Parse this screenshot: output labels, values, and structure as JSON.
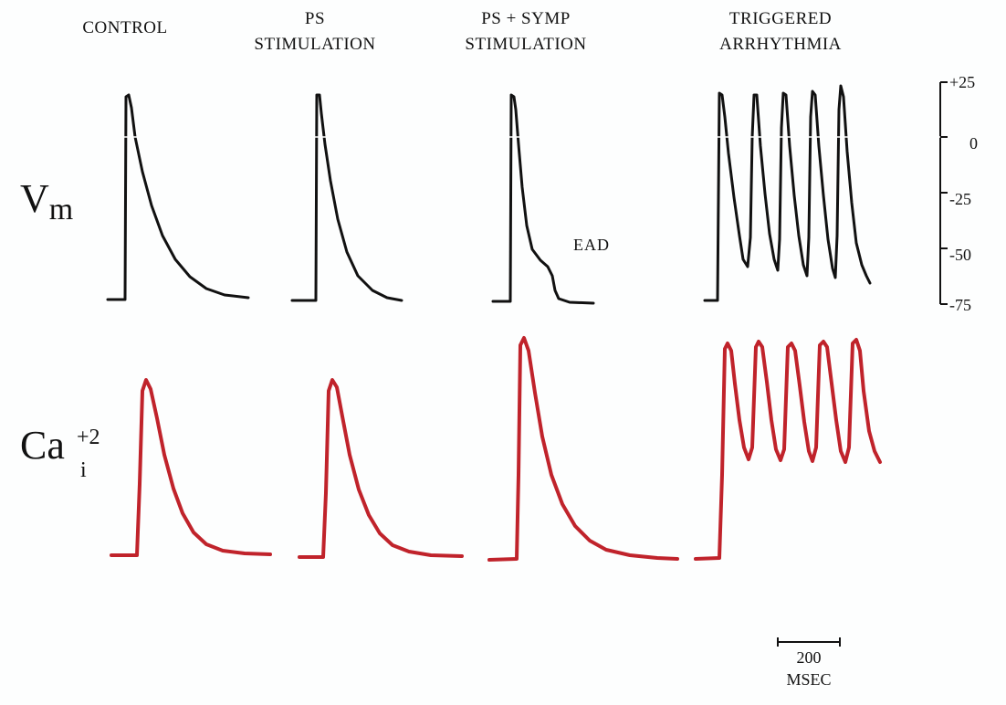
{
  "colors": {
    "vm_trace": "#111111",
    "ca_trace": "#c0232b",
    "background": "#fdfefe"
  },
  "columns": [
    {
      "line1": "CONTROL",
      "line2": ""
    },
    {
      "line1": "PS",
      "line2": "STIMULATION"
    },
    {
      "line1": "PS + SYMP",
      "line2": "STIMULATION"
    },
    {
      "line1": "TRIGGERED",
      "line2": "ARRHYTHMIA"
    }
  ],
  "rows": {
    "vm_label": "V",
    "vm_sub": "m",
    "ca_label": "Ca",
    "ca_sup": "+2",
    "ca_sub": "i"
  },
  "vm_axis": {
    "ticks": [
      "+25",
      "0",
      "-25",
      "-50",
      "-75"
    ]
  },
  "annotations": {
    "ead": "EAD"
  },
  "scale_bar": {
    "value": "200",
    "unit": "MSEC"
  }
}
